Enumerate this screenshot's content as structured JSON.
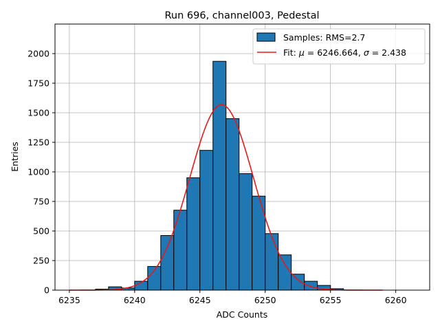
{
  "chart_data": {
    "type": "bar",
    "title": "Run 696, channel003, Pedestal",
    "xlabel": "ADC Counts",
    "ylabel": "Entries",
    "xlim": [
      6233.9,
      6262.6
    ],
    "ylim": [
      0,
      2250
    ],
    "xticks": [
      6235,
      6240,
      6245,
      6250,
      6255,
      6260
    ],
    "yticks": [
      0,
      250,
      500,
      750,
      1000,
      1250,
      1500,
      1750,
      2000
    ],
    "grid": true,
    "legend_position": "top-right",
    "colors": {
      "bars": "#1f77b4",
      "bar_edge": "#000000",
      "fit": "#e41a1c",
      "grid": "#b0b0b0"
    },
    "histogram": {
      "name": "Samples: RMS=2.7",
      "bin_edges": [
        6237,
        6238,
        6239,
        6240,
        6241,
        6242,
        6243,
        6244,
        6245,
        6246,
        6247,
        6248,
        6249,
        6250,
        6251,
        6252,
        6253,
        6254,
        6255,
        6256
      ],
      "counts": [
        8,
        28,
        18,
        75,
        200,
        462,
        676,
        950,
        1182,
        1935,
        1450,
        985,
        795,
        478,
        298,
        135,
        75,
        40,
        12
      ]
    },
    "fit": {
      "name_prefix": "Fit: ",
      "name_mu": "μ",
      "name_mid": " = 6246.664, ",
      "name_sigma": "σ",
      "name_end": " = 2.438",
      "mu": 6246.664,
      "sigma": 2.438,
      "amplitude": 1568,
      "x_range": [
        6235,
        6259
      ]
    }
  }
}
